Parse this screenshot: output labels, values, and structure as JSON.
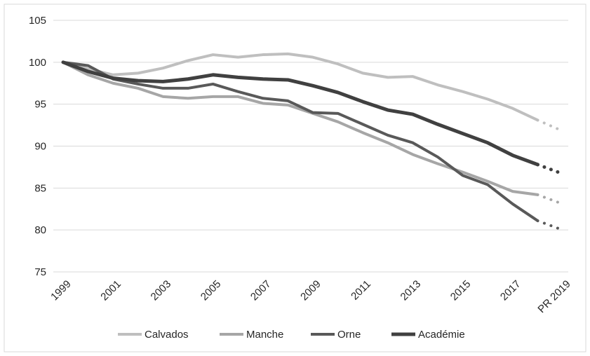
{
  "chart_data": {
    "type": "line",
    "categories": [
      "1999",
      "2000",
      "2001",
      "2002",
      "2003",
      "2004",
      "2005",
      "2006",
      "2007",
      "2008",
      "2009",
      "2010",
      "2011",
      "2012",
      "2013",
      "2014",
      "2015",
      "2016",
      "2017",
      "2018",
      "PR 2019"
    ],
    "x_tick_labels": [
      "1999",
      "2001",
      "2003",
      "2005",
      "2007",
      "2009",
      "2011",
      "2013",
      "2015",
      "2017",
      "PR 2019"
    ],
    "ylim": [
      75,
      105
    ],
    "yticks": [
      75,
      80,
      85,
      90,
      95,
      100,
      105
    ],
    "ytick_labels": [
      "75",
      "80",
      "85",
      "90",
      "95",
      "100",
      "105"
    ],
    "grid": true,
    "legend_position": "bottom",
    "projected_last_point": true,
    "series": [
      {
        "name": "Calvados",
        "color": "#bfbfbf",
        "values": [
          100,
          99.2,
          98.5,
          98.7,
          99.3,
          100.2,
          100.9,
          100.6,
          100.9,
          101.0,
          100.6,
          99.8,
          98.7,
          98.2,
          98.3,
          97.3,
          96.5,
          95.6,
          94.5,
          93.1,
          91.8
        ]
      },
      {
        "name": "Manche",
        "color": "#a6a6a6",
        "values": [
          100,
          98.5,
          97.5,
          96.9,
          95.9,
          95.7,
          95.9,
          95.9,
          95.1,
          94.9,
          93.9,
          92.9,
          91.6,
          90.4,
          89.0,
          87.9,
          86.9,
          85.8,
          84.6,
          84.2,
          83.1
        ]
      },
      {
        "name": "Orne",
        "color": "#595959",
        "values": [
          100,
          99.6,
          98.0,
          97.4,
          96.9,
          96.9,
          97.4,
          96.5,
          95.7,
          95.4,
          94.0,
          93.9,
          92.6,
          91.3,
          90.4,
          88.7,
          86.5,
          85.4,
          83.1,
          81.1,
          80.0
        ]
      },
      {
        "name": "Académie",
        "color": "#404040",
        "values": [
          100,
          98.9,
          98.1,
          97.8,
          97.7,
          98.0,
          98.5,
          98.2,
          98.0,
          97.9,
          97.2,
          96.4,
          95.3,
          94.3,
          93.8,
          92.6,
          91.5,
          90.4,
          88.9,
          87.8,
          86.7
        ]
      }
    ]
  }
}
